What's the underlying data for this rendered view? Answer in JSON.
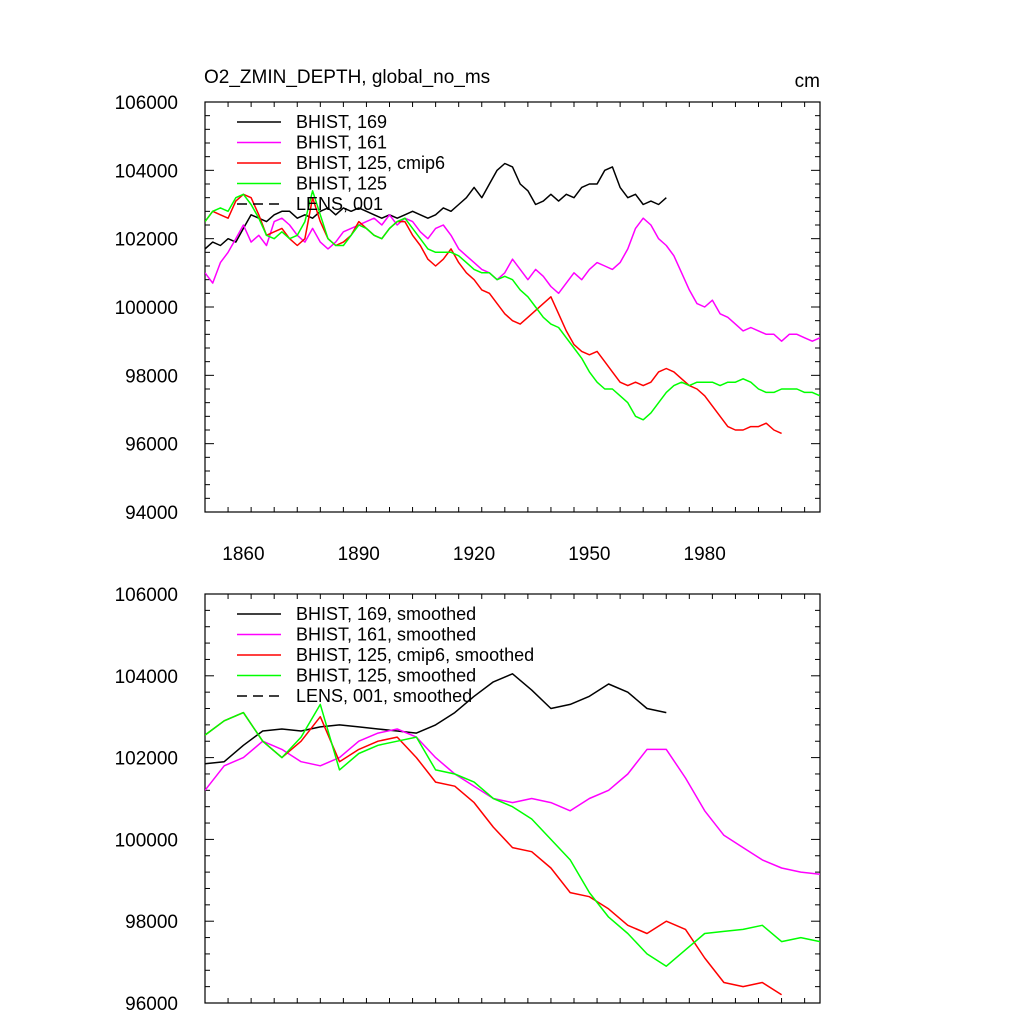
{
  "chart_data": [
    {
      "type": "line",
      "title": "O2_ZMIN_DEPTH, global_no_ms",
      "units": "cm",
      "xlim": [
        1850,
        2010
      ],
      "ylim": [
        94000,
        106000
      ],
      "xticks": [
        1860,
        1890,
        1920,
        1950,
        1980
      ],
      "xtick_labels": [
        "1860",
        "1890",
        "1920",
        "1950",
        "1980"
      ],
      "yticks": [
        94000,
        96000,
        98000,
        100000,
        102000,
        104000,
        106000
      ],
      "ytick_labels": [
        "94000",
        "96000",
        "98000",
        "100000",
        "102000",
        "104000",
        "106000"
      ],
      "legend_position": "top-left",
      "grid": false,
      "series": [
        {
          "name": "BHIST, 169",
          "color": "#000000",
          "dash": "solid",
          "x": [
            1850,
            1852,
            1854,
            1856,
            1858,
            1860,
            1862,
            1864,
            1866,
            1868,
            1870,
            1872,
            1874,
            1876,
            1878,
            1880,
            1882,
            1884,
            1886,
            1888,
            1890,
            1892,
            1894,
            1896,
            1898,
            1900,
            1902,
            1904,
            1906,
            1908,
            1910,
            1912,
            1914,
            1916,
            1918,
            1920,
            1922,
            1924,
            1926,
            1928,
            1930,
            1932,
            1934,
            1936,
            1938,
            1940,
            1942,
            1944,
            1946,
            1948,
            1950,
            1952,
            1954,
            1956,
            1958,
            1960,
            1962,
            1964,
            1966,
            1968,
            1970
          ],
          "y": [
            101700,
            101900,
            101800,
            102000,
            101900,
            102300,
            102700,
            102600,
            102500,
            102700,
            102800,
            102800,
            102600,
            102700,
            102600,
            102800,
            102900,
            102700,
            102900,
            102800,
            102900,
            102800,
            102700,
            102600,
            102700,
            102600,
            102700,
            102800,
            102700,
            102600,
            102700,
            102900,
            102800,
            103000,
            103200,
            103500,
            103200,
            103600,
            104000,
            104200,
            104100,
            103600,
            103400,
            103000,
            103100,
            103300,
            103100,
            103300,
            103200,
            103500,
            103600,
            103600,
            104000,
            104100,
            103500,
            103200,
            103300,
            103000,
            103100,
            103000,
            103200
          ]
        },
        {
          "name": "BHIST, 161",
          "color": "#ff00ff",
          "dash": "solid",
          "x": [
            1850,
            1852,
            1854,
            1856,
            1858,
            1860,
            1862,
            1864,
            1866,
            1868,
            1870,
            1872,
            1874,
            1876,
            1878,
            1880,
            1882,
            1884,
            1886,
            1888,
            1890,
            1892,
            1894,
            1896,
            1898,
            1900,
            1902,
            1904,
            1906,
            1908,
            1910,
            1912,
            1914,
            1916,
            1918,
            1920,
            1922,
            1924,
            1926,
            1928,
            1930,
            1932,
            1934,
            1936,
            1938,
            1940,
            1942,
            1944,
            1946,
            1948,
            1950,
            1952,
            1954,
            1956,
            1958,
            1960,
            1962,
            1964,
            1966,
            1968,
            1970,
            1972,
            1974,
            1976,
            1978,
            1980,
            1982,
            1984,
            1986,
            1988,
            1990,
            1992,
            1994,
            1996,
            1998,
            2000,
            2002,
            2004,
            2006,
            2008,
            2010
          ],
          "y": [
            101000,
            100700,
            101300,
            101600,
            102000,
            102400,
            101900,
            102100,
            101800,
            102500,
            102600,
            102400,
            102100,
            101900,
            102300,
            101900,
            101700,
            101900,
            102200,
            102300,
            102400,
            102500,
            102600,
            102400,
            102700,
            102400,
            102600,
            102500,
            102200,
            102000,
            102300,
            102400,
            102100,
            101700,
            101500,
            101300,
            101100,
            101000,
            100800,
            101000,
            101400,
            101100,
            100800,
            101100,
            100900,
            100600,
            100400,
            100700,
            101000,
            100800,
            101100,
            101300,
            101200,
            101100,
            101300,
            101700,
            102300,
            102600,
            102400,
            102000,
            101800,
            101500,
            101000,
            100500,
            100100,
            100000,
            100200,
            99800,
            99700,
            99500,
            99300,
            99400,
            99300,
            99200,
            99200,
            99000,
            99200,
            99200,
            99100,
            99000,
            99100
          ]
        },
        {
          "name": "BHIST, 125, cmip6",
          "color": "#ff0000",
          "dash": "solid",
          "x": [
            1850,
            1852,
            1854,
            1856,
            1858,
            1860,
            1862,
            1864,
            1866,
            1868,
            1870,
            1872,
            1874,
            1876,
            1878,
            1880,
            1882,
            1884,
            1886,
            1888,
            1890,
            1892,
            1894,
            1896,
            1898,
            1900,
            1902,
            1904,
            1906,
            1908,
            1910,
            1912,
            1914,
            1916,
            1918,
            1920,
            1922,
            1924,
            1926,
            1928,
            1930,
            1932,
            1934,
            1936,
            1938,
            1940,
            1942,
            1944,
            1946,
            1948,
            1950,
            1952,
            1954,
            1956,
            1958,
            1960,
            1962,
            1964,
            1966,
            1968,
            1970,
            1972,
            1974,
            1976,
            1978,
            1980,
            1982,
            1984,
            1986,
            1988,
            1990,
            1992,
            1994,
            1996,
            1998,
            2000
          ],
          "y": [
            102500,
            102800,
            102700,
            102600,
            103100,
            103300,
            103200,
            102700,
            102100,
            102200,
            102300,
            102000,
            101800,
            102000,
            103200,
            102500,
            102000,
            101800,
            101900,
            102100,
            102500,
            102300,
            102100,
            102000,
            102300,
            102500,
            102500,
            102100,
            101800,
            101400,
            101200,
            101400,
            101700,
            101300,
            101000,
            100800,
            100500,
            100400,
            100100,
            99800,
            99600,
            99500,
            99700,
            99900,
            100100,
            100300,
            99800,
            99300,
            98900,
            98700,
            98600,
            98700,
            98400,
            98100,
            97800,
            97700,
            97800,
            97700,
            97800,
            98100,
            98200,
            98100,
            97900,
            97700,
            97600,
            97400,
            97100,
            96800,
            96500,
            96400,
            96400,
            96500,
            96500,
            96600,
            96400,
            96300
          ]
        },
        {
          "name": "BHIST, 125",
          "color": "#00ff00",
          "dash": "solid",
          "x": [
            1850,
            1852,
            1854,
            1856,
            1858,
            1860,
            1862,
            1864,
            1866,
            1868,
            1870,
            1872,
            1874,
            1876,
            1878,
            1880,
            1882,
            1884,
            1886,
            1888,
            1890,
            1892,
            1894,
            1896,
            1898,
            1900,
            1902,
            1904,
            1906,
            1908,
            1910,
            1912,
            1914,
            1916,
            1918,
            1920,
            1922,
            1924,
            1926,
            1928,
            1930,
            1932,
            1934,
            1936,
            1938,
            1940,
            1942,
            1944,
            1946,
            1948,
            1950,
            1952,
            1954,
            1956,
            1958,
            1960,
            1962,
            1964,
            1966,
            1968,
            1970,
            1972,
            1974,
            1976,
            1978,
            1980,
            1982,
            1984,
            1986,
            1988,
            1990,
            1992,
            1994,
            1996,
            1998,
            2000,
            2002,
            2004,
            2006,
            2008,
            2010
          ],
          "y": [
            102500,
            102800,
            102900,
            102800,
            103200,
            103300,
            103000,
            102600,
            102100,
            102000,
            102200,
            102000,
            102100,
            102500,
            103400,
            102700,
            102000,
            101800,
            101800,
            102100,
            102400,
            102300,
            102100,
            102000,
            102300,
            102500,
            102600,
            102300,
            102000,
            101700,
            101600,
            101600,
            101600,
            101500,
            101300,
            101100,
            101000,
            101000,
            100800,
            100900,
            100800,
            100500,
            100300,
            100000,
            99700,
            99500,
            99400,
            99100,
            98800,
            98500,
            98100,
            97800,
            97600,
            97600,
            97400,
            97200,
            96800,
            96700,
            96900,
            97200,
            97500,
            97700,
            97800,
            97700,
            97800,
            97800,
            97800,
            97700,
            97800,
            97800,
            97900,
            97800,
            97600,
            97500,
            97500,
            97600,
            97600,
            97600,
            97500,
            97500,
            97400
          ]
        },
        {
          "name": "LENS, 001",
          "color": "#000000",
          "dash": "dashed",
          "x": [],
          "y": []
        }
      ]
    },
    {
      "type": "line",
      "xlim": [
        1850,
        2010
      ],
      "ylim": [
        96000,
        106000
      ],
      "xticks": [
        1860,
        1890,
        1920,
        1950,
        1980
      ],
      "yticks": [
        96000,
        98000,
        100000,
        102000,
        104000,
        106000
      ],
      "ytick_labels": [
        "96000",
        "98000",
        "100000",
        "102000",
        "104000",
        "106000"
      ],
      "legend_position": "top-left",
      "grid": false,
      "series": [
        {
          "name": "BHIST, 169, smoothed",
          "color": "#000000",
          "dash": "solid",
          "x": [
            1850,
            1855,
            1860,
            1865,
            1870,
            1875,
            1880,
            1885,
            1890,
            1895,
            1900,
            1905,
            1910,
            1915,
            1920,
            1925,
            1930,
            1935,
            1940,
            1945,
            1950,
            1955,
            1960,
            1965,
            1970
          ],
          "y": [
            101850,
            101900,
            102300,
            102650,
            102700,
            102650,
            102750,
            102800,
            102750,
            102700,
            102650,
            102600,
            102800,
            103100,
            103500,
            103850,
            104050,
            103650,
            103200,
            103300,
            103500,
            103800,
            103600,
            103200,
            103100
          ]
        },
        {
          "name": "BHIST, 161, smoothed",
          "color": "#ff00ff",
          "dash": "solid",
          "x": [
            1850,
            1855,
            1860,
            1865,
            1870,
            1875,
            1880,
            1885,
            1890,
            1895,
            1900,
            1905,
            1910,
            1915,
            1920,
            1925,
            1930,
            1935,
            1940,
            1945,
            1950,
            1955,
            1960,
            1965,
            1970,
            1975,
            1980,
            1985,
            1990,
            1995,
            2000,
            2005,
            2010
          ],
          "y": [
            101200,
            101800,
            102000,
            102400,
            102200,
            101900,
            101800,
            102000,
            102400,
            102600,
            102700,
            102500,
            102000,
            101600,
            101300,
            101000,
            100900,
            101000,
            100900,
            100700,
            101000,
            101200,
            101600,
            102200,
            102200,
            101500,
            100700,
            100100,
            99800,
            99500,
            99300,
            99200,
            99150
          ]
        },
        {
          "name": "BHIST, 125, cmip6, smoothed",
          "color": "#ff0000",
          "dash": "solid",
          "x": [
            1850,
            1855,
            1860,
            1865,
            1870,
            1875,
            1880,
            1885,
            1890,
            1895,
            1900,
            1905,
            1910,
            1915,
            1920,
            1925,
            1930,
            1935,
            1940,
            1945,
            1950,
            1955,
            1960,
            1965,
            1970,
            1975,
            1980,
            1985,
            1990,
            1995,
            2000
          ],
          "y": [
            102550,
            102900,
            103100,
            102400,
            102000,
            102400,
            103000,
            101900,
            102200,
            102400,
            102500,
            102000,
            101400,
            101300,
            100900,
            100300,
            99800,
            99700,
            99300,
            98700,
            98600,
            98300,
            97900,
            97700,
            98000,
            97800,
            97100,
            96500,
            96400,
            96500,
            96200
          ]
        },
        {
          "name": "BHIST, 125, smoothed",
          "color": "#00ff00",
          "dash": "solid",
          "x": [
            1850,
            1855,
            1860,
            1865,
            1870,
            1875,
            1880,
            1885,
            1890,
            1895,
            1900,
            1905,
            1910,
            1915,
            1920,
            1925,
            1930,
            1935,
            1940,
            1945,
            1950,
            1955,
            1960,
            1965,
            1970,
            1975,
            1980,
            1985,
            1990,
            1995,
            2000,
            2005,
            2010
          ],
          "y": [
            102550,
            102900,
            103100,
            102400,
            102000,
            102500,
            103300,
            101700,
            102100,
            102300,
            102400,
            102500,
            101700,
            101600,
            101400,
            101000,
            100800,
            100500,
            100000,
            99500,
            98700,
            98100,
            97700,
            97200,
            96900,
            97300,
            97700,
            97750,
            97800,
            97900,
            97500,
            97600,
            97500
          ]
        },
        {
          "name": "LENS, 001, smoothed",
          "color": "#000000",
          "dash": "dashed",
          "x": [],
          "y": []
        }
      ]
    }
  ]
}
